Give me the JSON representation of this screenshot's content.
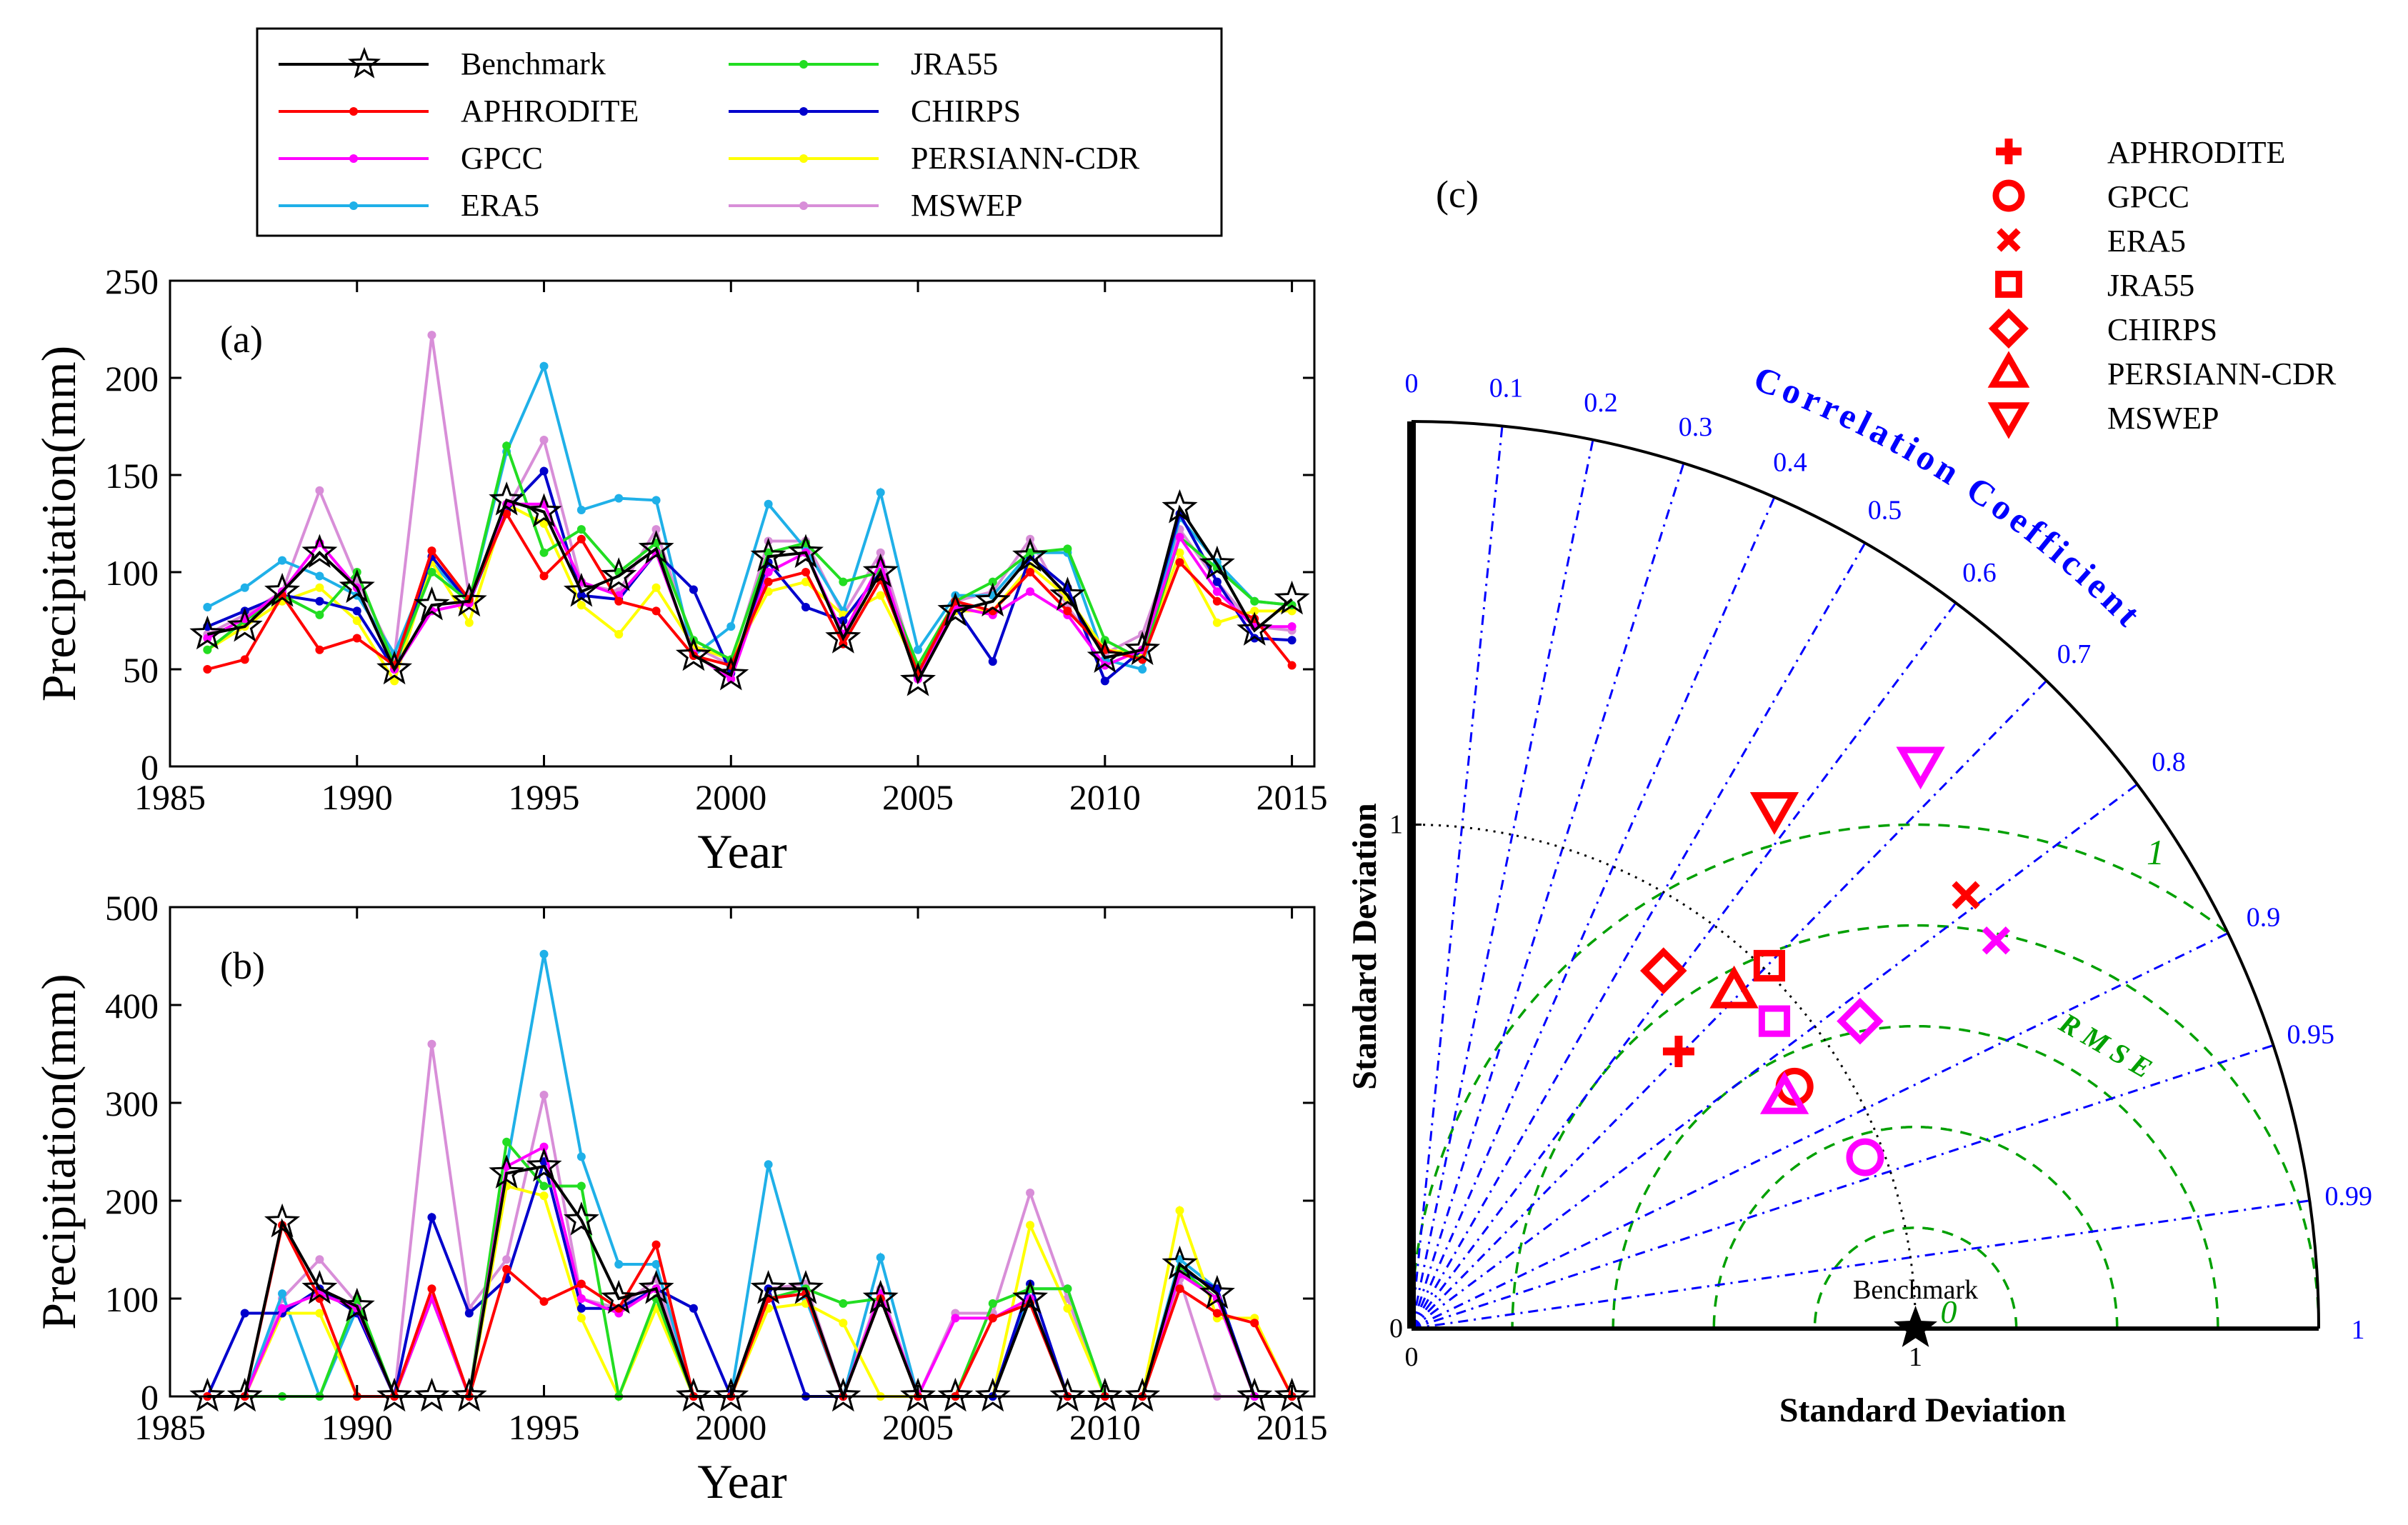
{
  "colors": {
    "Benchmark": "#000000",
    "APHRODITE": "#ff0000",
    "GPCC": "#ff00ff",
    "ERA5": "#1fb0e8",
    "JRA55": "#22dd22",
    "CHIRPS": "#0000cc",
    "PERSIANN-CDR": "#ffff00",
    "MSWEP": "#d88ed8",
    "taylor_model_a": "#ff0000",
    "taylor_model_b": "#ff00ff",
    "taylor_corr": "#0000ff",
    "taylor_rmse": "#00a000"
  },
  "legend": {
    "entries": [
      "Benchmark",
      "APHRODITE",
      "GPCC",
      "ERA5",
      "JRA55",
      "CHIRPS",
      "PERSIANN-CDR",
      "MSWEP"
    ]
  },
  "chart_data": [
    {
      "type": "line",
      "panel_label": "(a)",
      "xlabel": "Year",
      "ylabel": "Precipitation(mm)",
      "xlim": [
        1985,
        2015.6
      ],
      "ylim": [
        0,
        250
      ],
      "xticks": [
        1985,
        1990,
        1995,
        2000,
        2005,
        2010,
        2015
      ],
      "yticks": [
        0,
        50,
        100,
        150,
        200,
        250
      ],
      "x": [
        1986,
        1987,
        1988,
        1989,
        1990,
        1991,
        1992,
        1993,
        1994,
        1995,
        1996,
        1997,
        1998,
        1999,
        2000,
        2001,
        2002,
        2003,
        2004,
        2005,
        2006,
        2007,
        2008,
        2009,
        2010,
        2011,
        2012,
        2013,
        2014,
        2015
      ],
      "series": [
        {
          "name": "Benchmark",
          "values": [
            68,
            72,
            90,
            110,
            92,
            50,
            83,
            85,
            137,
            131,
            90,
            98,
            112,
            57,
            47,
            108,
            110,
            66,
            100,
            44,
            80,
            85,
            108,
            88,
            56,
            60,
            133,
            104,
            70,
            86
          ]
        },
        {
          "name": "APHRODITE",
          "values": [
            50,
            55,
            88,
            60,
            66,
            52,
            111,
            86,
            130,
            98,
            117,
            85,
            80,
            57,
            52,
            95,
            100,
            63,
            96,
            48,
            85,
            80,
            100,
            80,
            60,
            55,
            105,
            85,
            76,
            52
          ]
        },
        {
          "name": "GPCC",
          "values": [
            66,
            76,
            90,
            115,
            92,
            50,
            80,
            84,
            135,
            135,
            95,
            88,
            110,
            58,
            45,
            100,
            110,
            68,
            105,
            45,
            82,
            78,
            90,
            78,
            52,
            60,
            118,
            90,
            72,
            72
          ]
        },
        {
          "name": "ERA5",
          "values": [
            82,
            92,
            106,
            98,
            88,
            58,
            105,
            84,
            162,
            206,
            132,
            138,
            137,
            57,
            72,
            135,
            112,
            80,
            141,
            60,
            88,
            88,
            110,
            110,
            55,
            50,
            128,
            105,
            85,
            83
          ]
        },
        {
          "name": "JRA55",
          "values": [
            60,
            75,
            88,
            78,
            100,
            52,
            100,
            85,
            165,
            110,
            122,
            100,
            115,
            65,
            55,
            110,
            115,
            95,
            100,
            52,
            85,
            95,
            110,
            112,
            65,
            55,
            118,
            102,
            85,
            83
          ]
        },
        {
          "name": "CHIRPS",
          "values": [
            72,
            80,
            88,
            85,
            80,
            50,
            108,
            84,
            132,
            152,
            88,
            86,
            110,
            91,
            48,
            105,
            82,
            75,
            100,
            46,
            82,
            54,
            108,
            92,
            44,
            60,
            130,
            95,
            66,
            65
          ]
        },
        {
          "name": "PERSIANN-CDR",
          "values": [
            60,
            72,
            85,
            92,
            75,
            44,
            105,
            74,
            135,
            125,
            83,
            68,
            92,
            62,
            55,
            90,
            95,
            78,
            88,
            50,
            80,
            80,
            103,
            87,
            60,
            58,
            110,
            74,
            80,
            80
          ]
        },
        {
          "name": "MSWEP",
          "values": [
            68,
            78,
            90,
            142,
            96,
            56,
            222,
            87,
            132,
            168,
            94,
            90,
            122,
            62,
            52,
            116,
            116,
            78,
            110,
            47,
            85,
            90,
            117,
            82,
            58,
            68,
            122,
            95,
            72,
            70
          ]
        }
      ]
    },
    {
      "type": "line",
      "panel_label": "(b)",
      "xlabel": "Year",
      "ylabel": "Precipitation(mm)",
      "xlim": [
        1985,
        2015.6
      ],
      "ylim": [
        0,
        500
      ],
      "xticks": [
        1985,
        1990,
        1995,
        2000,
        2005,
        2010,
        2015
      ],
      "yticks": [
        0,
        100,
        200,
        300,
        400,
        500
      ],
      "x": [
        1986,
        1987,
        1988,
        1989,
        1990,
        1991,
        1992,
        1993,
        1994,
        1995,
        1996,
        1997,
        1998,
        1999,
        2000,
        2001,
        2002,
        2003,
        2004,
        2005,
        2006,
        2007,
        2008,
        2009,
        2010,
        2011,
        2012,
        2013,
        2014,
        2015
      ],
      "series": [
        {
          "name": "Benchmark",
          "values": [
            0,
            0,
            178,
            110,
            92,
            0,
            0,
            0,
            228,
            235,
            180,
            100,
            110,
            0,
            0,
            110,
            110,
            0,
            100,
            0,
            0,
            0,
            100,
            0,
            0,
            0,
            135,
            105,
            0,
            0
          ]
        },
        {
          "name": "APHRODITE",
          "values": [
            0,
            0,
            175,
            100,
            0,
            0,
            110,
            0,
            130,
            97,
            115,
            90,
            155,
            0,
            0,
            100,
            105,
            0,
            100,
            0,
            0,
            80,
            95,
            0,
            0,
            0,
            110,
            85,
            75,
            0
          ]
        },
        {
          "name": "GPCC",
          "values": [
            0,
            0,
            90,
            105,
            90,
            0,
            100,
            0,
            235,
            255,
            100,
            85,
            110,
            0,
            0,
            100,
            105,
            0,
            105,
            0,
            80,
            80,
            100,
            0,
            0,
            0,
            125,
            100,
            0,
            0
          ]
        },
        {
          "name": "ERA5",
          "values": [
            0,
            0,
            105,
            0,
            90,
            0,
            100,
            0,
            235,
            452,
            245,
            135,
            135,
            0,
            0,
            237,
            100,
            0,
            142,
            0,
            0,
            0,
            110,
            110,
            0,
            0,
            140,
            110,
            0,
            0
          ]
        },
        {
          "name": "JRA55",
          "values": [
            0,
            0,
            0,
            0,
            100,
            0,
            100,
            0,
            260,
            215,
            215,
            0,
            100,
            0,
            0,
            100,
            110,
            95,
            100,
            0,
            0,
            95,
            110,
            110,
            0,
            0,
            130,
            100,
            0,
            0
          ]
        },
        {
          "name": "CHIRPS",
          "values": [
            0,
            85,
            85,
            110,
            85,
            0,
            183,
            85,
            120,
            240,
            90,
            90,
            110,
            90,
            0,
            110,
            0,
            0,
            100,
            0,
            0,
            0,
            115,
            0,
            0,
            0,
            130,
            110,
            0,
            0
          ]
        },
        {
          "name": "PERSIANN-CDR",
          "values": [
            0,
            0,
            85,
            85,
            0,
            0,
            100,
            0,
            215,
            205,
            80,
            0,
            90,
            0,
            0,
            90,
            95,
            75,
            0,
            0,
            0,
            0,
            175,
            90,
            0,
            0,
            190,
            80,
            80,
            0
          ]
        },
        {
          "name": "MSWEP",
          "values": [
            0,
            0,
            100,
            140,
            95,
            0,
            360,
            90,
            140,
            308,
            100,
            90,
            120,
            0,
            0,
            110,
            115,
            0,
            110,
            0,
            85,
            85,
            208,
            100,
            0,
            0,
            120,
            0,
            0,
            0
          ]
        }
      ]
    },
    {
      "type": "scatter",
      "subtype": "taylor-diagram",
      "panel_label": "(c)",
      "xlabel": "Standard Deviation",
      "ylabel": "Standard Deviation",
      "arc_label": "Correlation Coefficient",
      "rmse_label": "RMSE",
      "radius_max": 1.8,
      "ref_std": 1,
      "reference_label": "Benchmark",
      "axis_tick_labels": {
        "x": [
          "0",
          "1"
        ],
        "y": [
          "0",
          "1"
        ]
      },
      "correlation_ticks": [
        0,
        0.1,
        0.2,
        0.3,
        0.4,
        0.5,
        0.6,
        0.7,
        0.8,
        0.9,
        0.95,
        0.99,
        1
      ],
      "rmse_levels": [
        0.2,
        0.4,
        0.6,
        0.8,
        1.0
      ],
      "rmse_level_labels": [
        "0",
        "1"
      ],
      "models": [
        {
          "name": "APHRODITE",
          "marker": "plus",
          "points": [
            {
              "set": "a",
              "x": 0.53,
              "y": 0.55
            },
            {
              "set": "b",
              "x": null,
              "y": null
            }
          ]
        },
        {
          "name": "GPCC",
          "marker": "circle",
          "points": [
            {
              "set": "a",
              "x": 0.76,
              "y": 0.48
            },
            {
              "set": "b",
              "x": 0.9,
              "y": 0.34
            }
          ]
        },
        {
          "name": "ERA5",
          "marker": "x",
          "points": [
            {
              "set": "a",
              "x": 1.1,
              "y": 0.86
            },
            {
              "set": "b",
              "x": 1.16,
              "y": 0.77
            }
          ]
        },
        {
          "name": "JRA55",
          "marker": "square",
          "points": [
            {
              "set": "a",
              "x": 0.71,
              "y": 0.72
            },
            {
              "set": "b",
              "x": 0.72,
              "y": 0.61
            }
          ]
        },
        {
          "name": "CHIRPS",
          "marker": "diamond",
          "points": [
            {
              "set": "a",
              "x": 0.5,
              "y": 0.71
            },
            {
              "set": "b",
              "x": 0.89,
              "y": 0.61
            }
          ]
        },
        {
          "name": "PERSIANN-CDR",
          "marker": "triangle-up",
          "points": [
            {
              "set": "a",
              "x": 0.64,
              "y": 0.67
            },
            {
              "set": "b",
              "x": 0.74,
              "y": 0.46
            }
          ]
        },
        {
          "name": "MSWEP",
          "marker": "triangle-down",
          "points": [
            {
              "set": "a",
              "x": 0.72,
              "y": 1.03
            },
            {
              "set": "b",
              "x": 1.01,
              "y": 1.12
            }
          ]
        }
      ],
      "legend_entries": [
        "APHRODITE",
        "GPCC",
        "ERA5",
        "JRA55",
        "CHIRPS",
        "PERSIANN-CDR",
        "MSWEP"
      ]
    }
  ]
}
